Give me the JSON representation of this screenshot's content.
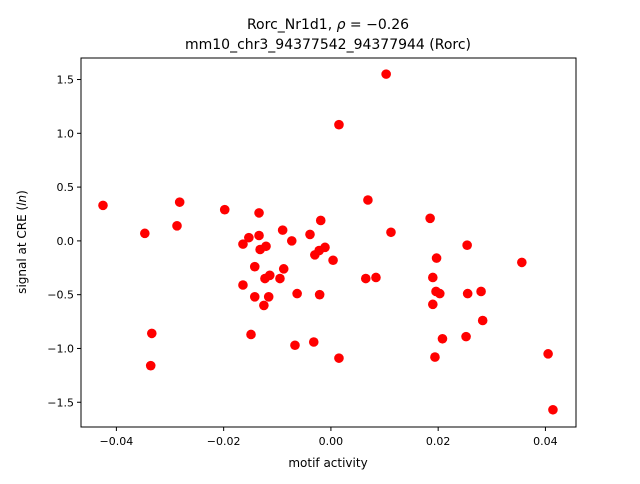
{
  "chart_data": {
    "type": "scatter",
    "title_prefix": "Rorc_Nr1d1, ",
    "title_rho_symbol": "ρ",
    "title_rho_value": " = −0.26",
    "subtitle": "mm10_chr3_94377542_94377944 (Rorc)",
    "xlabel": "motif activity",
    "ylabel_prefix": "signal at CRE (",
    "ylabel_italic": "ln",
    "ylabel_suffix": ")",
    "xlim": [
      -0.0466,
      0.0457
    ],
    "ylim": [
      -1.73,
      1.7
    ],
    "xticks": [
      -0.04,
      -0.02,
      0.0,
      0.02,
      0.04
    ],
    "xtick_labels": [
      "−0.04",
      "−0.02",
      "0.00",
      "0.02",
      "0.04"
    ],
    "yticks": [
      -1.5,
      -1.0,
      -0.5,
      0.0,
      0.5,
      1.0,
      1.5
    ],
    "ytick_labels": [
      "−1.5",
      "−1.0",
      "−0.5",
      "0.0",
      "0.5",
      "1.0",
      "1.5"
    ],
    "grid": false,
    "marker_color": "#ff0000",
    "points": [
      [
        -0.0425,
        0.33
      ],
      [
        -0.0347,
        0.07
      ],
      [
        -0.0282,
        0.36
      ],
      [
        -0.0287,
        0.14
      ],
      [
        -0.0334,
        -0.86
      ],
      [
        -0.0336,
        -1.16
      ],
      [
        -0.0198,
        0.29
      ],
      [
        0.0103,
        1.55
      ],
      [
        0.0015,
        1.08
      ],
      [
        0.0069,
        0.38
      ],
      [
        0.0112,
        0.08
      ],
      [
        0.0015,
        -1.09
      ],
      [
        0.0185,
        0.21
      ],
      [
        0.0254,
        -0.04
      ],
      [
        0.019,
        -0.34
      ],
      [
        0.0197,
        -0.16
      ],
      [
        0.0196,
        -0.47
      ],
      [
        0.0203,
        -0.49
      ],
      [
        0.019,
        -0.59
      ],
      [
        0.0208,
        -0.91
      ],
      [
        0.0194,
        -1.08
      ],
      [
        0.0255,
        -0.49
      ],
      [
        0.028,
        -0.47
      ],
      [
        0.0283,
        -0.74
      ],
      [
        0.0252,
        -0.89
      ],
      [
        0.0356,
        -0.2
      ],
      [
        0.0405,
        -1.05
      ],
      [
        0.0414,
        -1.57
      ],
      [
        -0.0134,
        0.26
      ],
      [
        -0.0019,
        0.19
      ],
      [
        -0.009,
        0.1
      ],
      [
        -0.0039,
        0.06
      ],
      [
        -0.0153,
        0.03
      ],
      [
        -0.0134,
        0.05
      ],
      [
        -0.0164,
        -0.03
      ],
      [
        -0.0121,
        -0.05
      ],
      [
        -0.0132,
        -0.08
      ],
      [
        -0.0073,
        0.0
      ],
      [
        -0.0011,
        -0.06
      ],
      [
        -0.0022,
        -0.09
      ],
      [
        -0.003,
        -0.13
      ],
      [
        0.0004,
        -0.18
      ],
      [
        -0.0142,
        -0.24
      ],
      [
        -0.0088,
        -0.26
      ],
      [
        -0.0114,
        -0.32
      ],
      [
        -0.0123,
        -0.35
      ],
      [
        -0.0095,
        -0.35
      ],
      [
        -0.0164,
        -0.41
      ],
      [
        0.0065,
        -0.35
      ],
      [
        0.0084,
        -0.34
      ],
      [
        -0.0142,
        -0.52
      ],
      [
        -0.0116,
        -0.52
      ],
      [
        -0.0063,
        -0.49
      ],
      [
        -0.0021,
        -0.5
      ],
      [
        -0.0125,
        -0.6
      ],
      [
        -0.0149,
        -0.87
      ],
      [
        -0.0067,
        -0.97
      ],
      [
        -0.0032,
        -0.94
      ]
    ]
  }
}
